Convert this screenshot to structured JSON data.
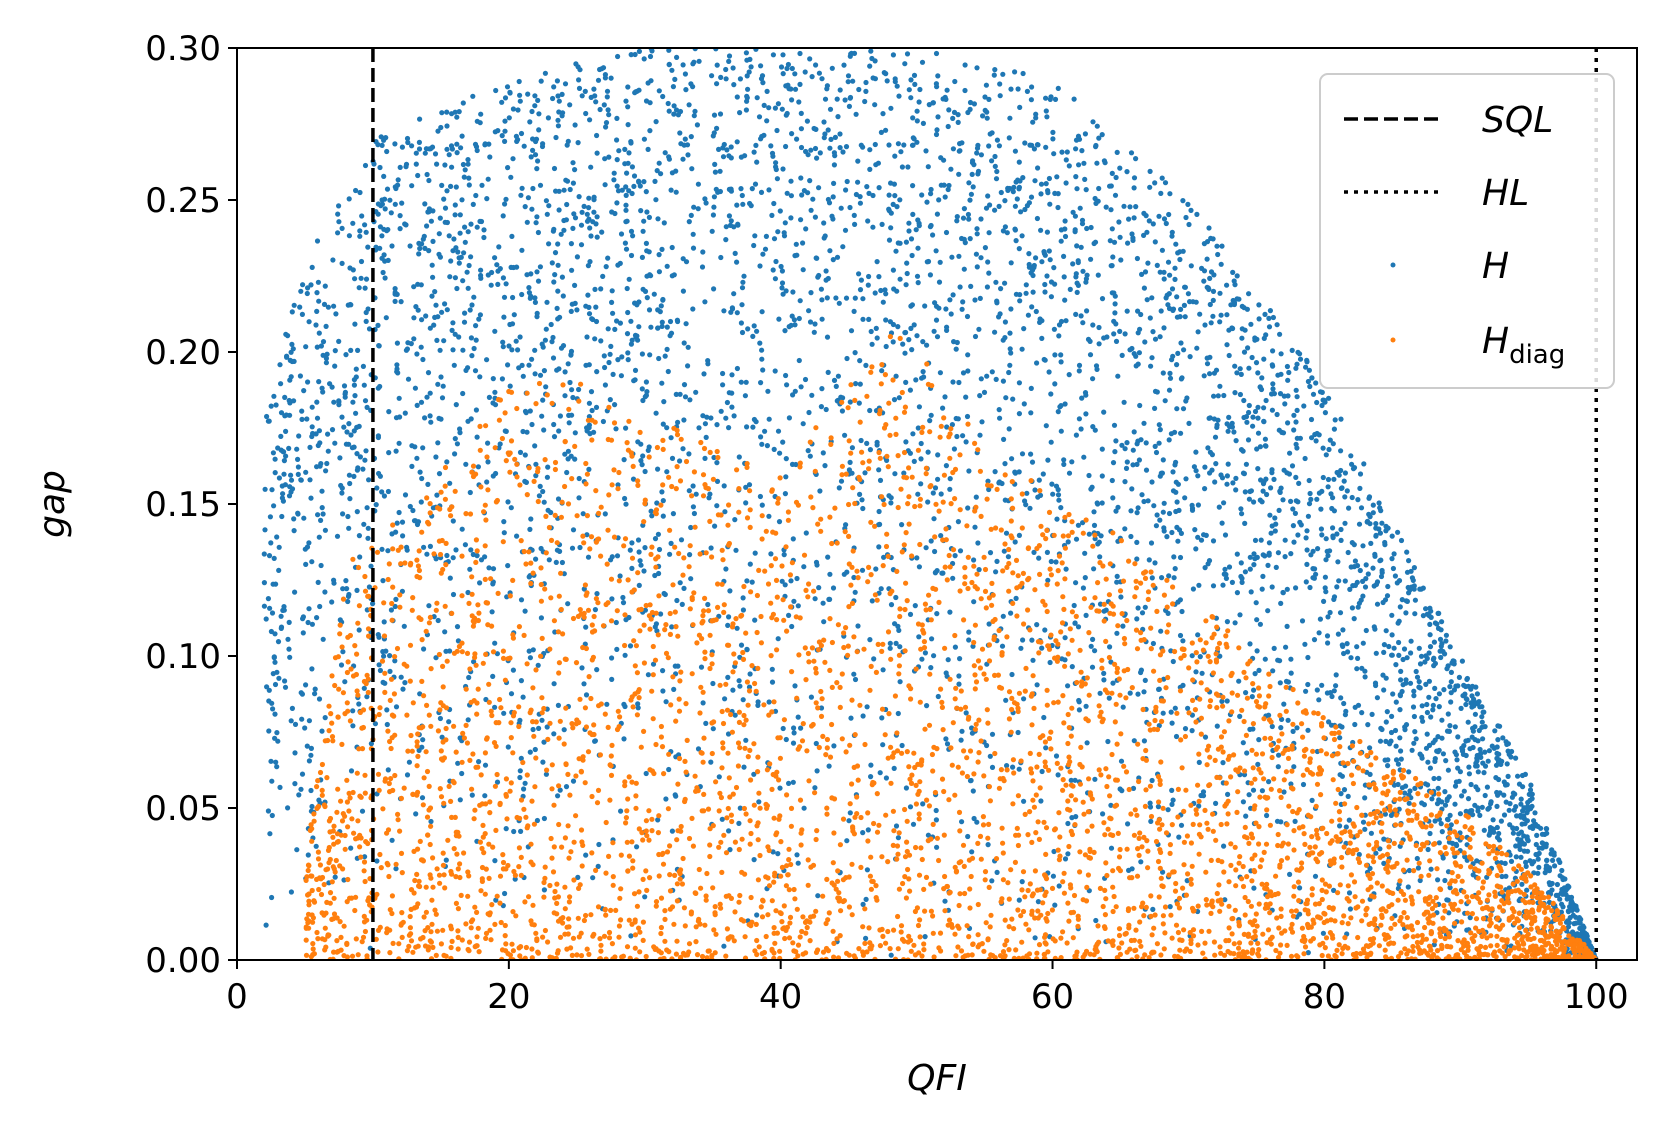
{
  "chart_data": {
    "type": "scatter",
    "xlabel": "QFI",
    "ylabel": "gap",
    "xlim": [
      0,
      103
    ],
    "ylim": [
      0,
      0.3
    ],
    "x_ticks": [
      0,
      20,
      40,
      60,
      80,
      100
    ],
    "y_ticks": [
      0.0,
      0.05,
      0.1,
      0.15,
      0.2,
      0.25,
      0.3
    ],
    "x_tick_labels": [
      "0",
      "20",
      "40",
      "60",
      "80",
      "100"
    ],
    "y_tick_labels": [
      "0.00",
      "0.05",
      "0.10",
      "0.15",
      "0.20",
      "0.25",
      "0.30"
    ],
    "grid": false,
    "legend_position": "top-right",
    "reference_lines": [
      {
        "name": "SQL",
        "x": 10,
        "style": "dashed",
        "color": "#000000"
      },
      {
        "name": "HL",
        "x": 100,
        "style": "dotted",
        "color": "#000000"
      }
    ],
    "series": [
      {
        "name": "H",
        "color": "#1f77b4",
        "approx_envelope": {
          "x": [
            2,
            5,
            10,
            20,
            30,
            40,
            45,
            50,
            60,
            70,
            80,
            90,
            95,
            100
          ],
          "gap_upper": [
            0.18,
            0.23,
            0.27,
            0.29,
            0.3,
            0.3,
            0.3,
            0.3,
            0.29,
            0.25,
            0.19,
            0.1,
            0.06,
            0.0
          ]
        }
      },
      {
        "name": "H_diag",
        "legend_main": "H",
        "legend_sub": "diag",
        "color": "#ff7f0e",
        "approx_envelope": {
          "x": [
            5,
            8,
            10,
            15,
            20,
            25,
            30,
            35,
            40,
            48,
            52,
            55,
            60,
            65,
            70,
            80,
            90,
            95,
            100
          ],
          "gap_upper": [
            0.03,
            0.13,
            0.14,
            0.16,
            0.19,
            0.19,
            0.18,
            0.17,
            0.16,
            0.21,
            0.19,
            0.18,
            0.15,
            0.14,
            0.12,
            0.08,
            0.05,
            0.03,
            0.0
          ]
        }
      }
    ]
  },
  "legend": {
    "sql": "SQL",
    "hl": "HL",
    "h": "H",
    "hdiag_main": "H",
    "hdiag_sub": "diag"
  }
}
